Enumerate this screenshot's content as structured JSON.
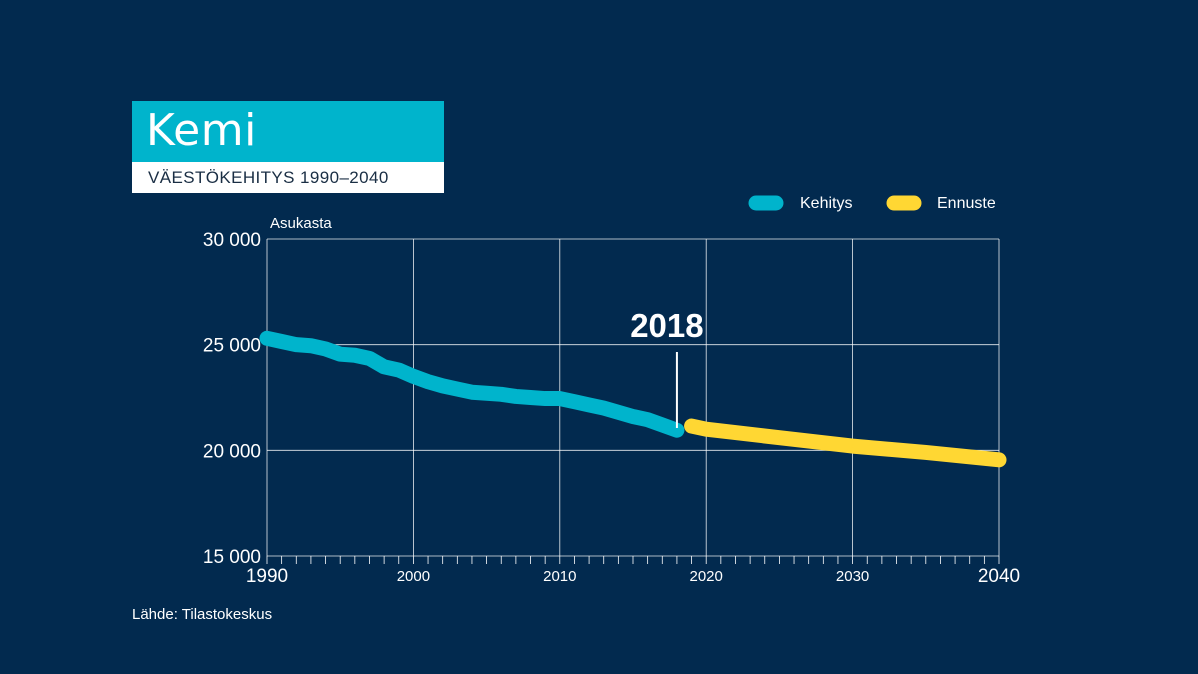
{
  "header": {
    "title": "Kemi",
    "subtitle": "VÄESTÖKEHITYS 1990–2040"
  },
  "source": "Lähde: Tilastokeskus",
  "colors": {
    "background": "#022a4f",
    "kehitys": "#00b4cc",
    "ennuste": "#ffd733",
    "grid": "#ffffff"
  },
  "chart_data": {
    "type": "line",
    "title": "Kemi",
    "subtitle": "VÄESTÖKEHITYS 1990–2040",
    "ylabel": "Asukasta",
    "xlabel": "",
    "xlim": [
      1990,
      2040
    ],
    "ylim": [
      15000,
      30000
    ],
    "grid": true,
    "legend_position": "top-right",
    "x_ticks": [
      1990,
      2000,
      2010,
      2020,
      2030,
      2040
    ],
    "x_tick_labels": [
      "1990",
      "2000",
      "2010",
      "2020",
      "2030",
      "2040"
    ],
    "y_ticks": [
      15000,
      20000,
      25000,
      30000
    ],
    "y_tick_labels": [
      "15 000",
      "20 000",
      "25 000",
      "30 000"
    ],
    "annotation": {
      "x": 2018,
      "label": "2018"
    },
    "series": [
      {
        "name": "Kehitys",
        "color": "#00b4cc",
        "x": [
          1990,
          1991,
          1992,
          1993,
          1994,
          1995,
          1996,
          1997,
          1998,
          1999,
          2000,
          2001,
          2002,
          2003,
          2004,
          2005,
          2006,
          2007,
          2008,
          2009,
          2010,
          2011,
          2012,
          2013,
          2014,
          2015,
          2016,
          2017,
          2018
        ],
        "y": [
          25300,
          25150,
          25000,
          24950,
          24800,
          24550,
          24500,
          24350,
          23950,
          23800,
          23500,
          23250,
          23050,
          22900,
          22750,
          22700,
          22650,
          22550,
          22500,
          22450,
          22450,
          22300,
          22150,
          22000,
          21800,
          21600,
          21450,
          21200,
          20950
        ]
      },
      {
        "name": "Ennuste",
        "color": "#ffd733",
        "x": [
          2019,
          2020,
          2025,
          2030,
          2035,
          2040
        ],
        "y": [
          21150,
          21000,
          20600,
          20200,
          19900,
          19550
        ]
      }
    ]
  }
}
